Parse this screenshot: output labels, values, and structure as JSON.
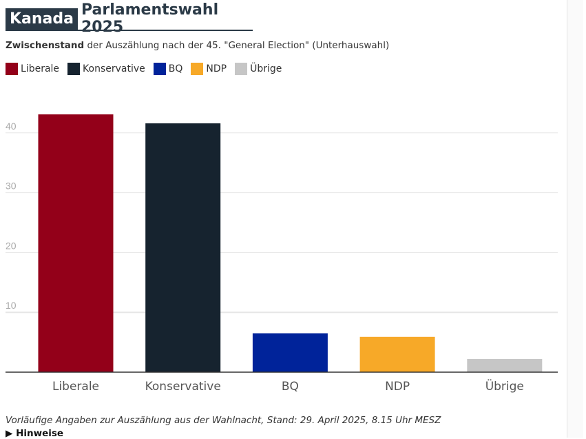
{
  "header": {
    "country": "Kanada",
    "title": "Parlamentswahl 2025"
  },
  "subtitle": {
    "bold": "Zwischenstand",
    "rest": " der Auszählung nach der 45. \"General Election\" (Unterhauswahl)"
  },
  "footer": {
    "note": "Vorläufige Angaben zur Auszählung aus der Wahlnacht, Stand: 29. April 2025, 8.15 Uhr MESZ",
    "hinweise": "Hinweise",
    "hinweise_icon": "triangle-right-icon"
  },
  "chart_data": {
    "type": "bar",
    "categories": [
      "Liberale",
      "Konservative",
      "BQ",
      "NDP",
      "Übrige"
    ],
    "values": [
      43.1,
      41.6,
      6.5,
      5.9,
      2.2
    ],
    "colors": [
      "#930019",
      "#16232f",
      "#00239a",
      "#f7a928",
      "#c6c6c6"
    ],
    "yticks": [
      10,
      20,
      30,
      40
    ],
    "ylim": [
      0,
      45
    ],
    "grid": true,
    "legend": "top-left",
    "title": "",
    "xlabel": "",
    "ylabel": ""
  }
}
